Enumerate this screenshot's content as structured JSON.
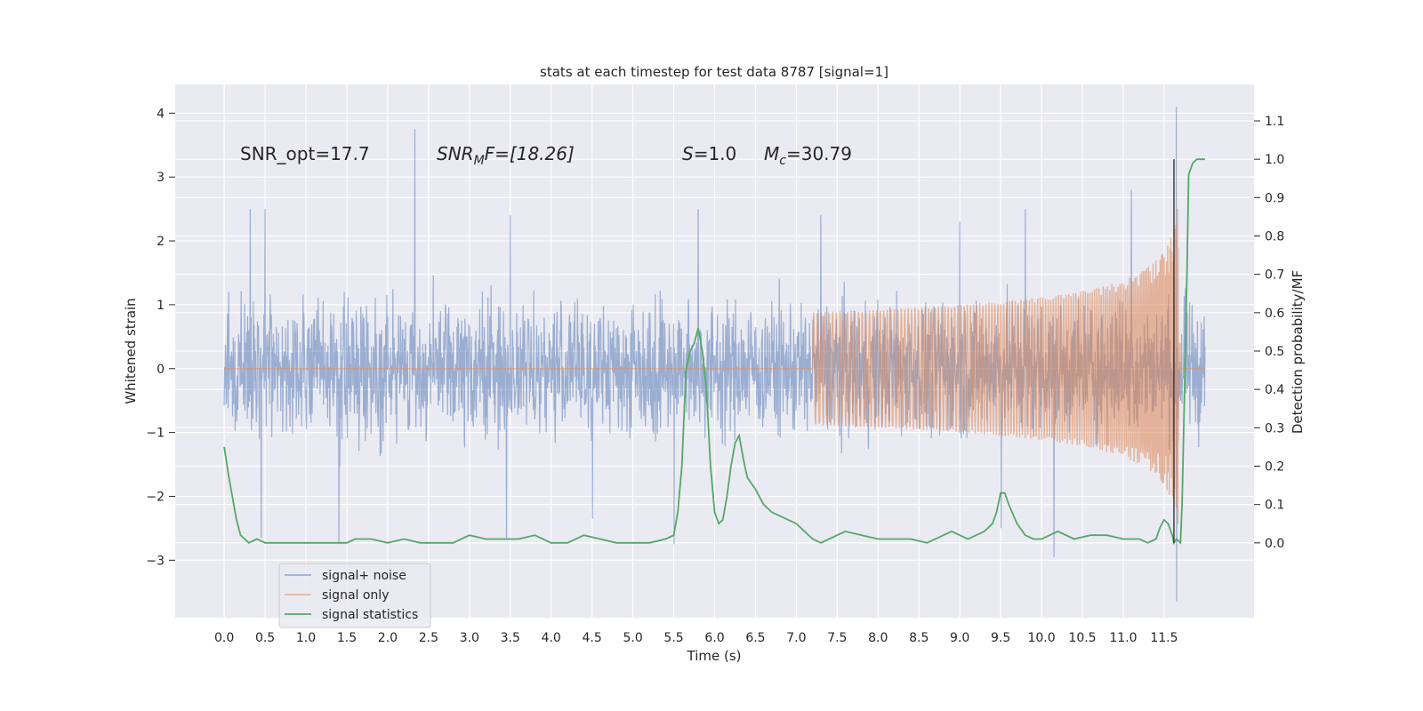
{
  "chart_data": {
    "type": "line",
    "title": "stats at each timestep for test data 8787 [signal=1]",
    "xlabel": "Time (s)",
    "ylabel": "Whitened strain",
    "ylabel_right": "Detection probability/MF",
    "xlim": [
      -0.6,
      12.6
    ],
    "ylim": [
      -3.9,
      4.45
    ],
    "ylim_right": [
      -0.195,
      1.195
    ],
    "grid": true,
    "legend_position": "lower-left",
    "x_ticks": [
      "0.0",
      "0.5",
      "1.0",
      "1.5",
      "2.0",
      "2.5",
      "3.0",
      "3.5",
      "4.0",
      "4.5",
      "5.0",
      "5.5",
      "6.0",
      "6.5",
      "7.0",
      "7.5",
      "8.0",
      "8.5",
      "9.0",
      "9.5",
      "10.0",
      "10.5",
      "11.0",
      "11.5"
    ],
    "y_ticks": [
      "−3",
      "−2",
      "−1",
      "0",
      "1",
      "2",
      "3",
      "4"
    ],
    "y_right_ticks": [
      "0.0",
      "0.1",
      "0.2",
      "0.3",
      "0.4",
      "0.5",
      "0.6",
      "0.7",
      "0.8",
      "0.9",
      "1.0",
      "1.1"
    ],
    "annotations": {
      "snr_opt": "SNR_opt=17.7",
      "snr_mf_main": "SNR",
      "snr_mf_sub": "M",
      "snr_mf_rest": "F=[18.26]",
      "s_main": "S",
      "s_rest": "=1.0",
      "mc_main": "M",
      "mc_sub": "c",
      "mc_rest": "=30.79"
    },
    "series": [
      {
        "name": "signal+ noise",
        "color": "#4c72b0",
        "axis": "left",
        "duration": 12.0,
        "envelope": 1.4,
        "spike_times": [
          0.32,
          0.5,
          2.33,
          3.5,
          5.8,
          7.3,
          9.0,
          9.8,
          11.1,
          11.65
        ],
        "spike_values": [
          2.5,
          2.5,
          3.75,
          2.4,
          2.5,
          2.4,
          2.3,
          2.5,
          2.8,
          4.1
        ],
        "dip_times": [
          0.45,
          1.4,
          3.45,
          4.5,
          5.5,
          9.5,
          10.15,
          11.65
        ],
        "dip_values": [
          -2.65,
          -2.75,
          -2.65,
          -2.35,
          -2.75,
          -2.5,
          -2.95,
          -3.65
        ]
      },
      {
        "name": "signal only",
        "color": "#dd8452",
        "axis": "left",
        "start_time": 7.2,
        "merger_time": 11.7,
        "peak_amplitude": 3.25
      },
      {
        "name": "signal statistics",
        "color": "#55a868",
        "axis": "right",
        "x": [
          0.0,
          0.05,
          0.1,
          0.15,
          0.2,
          0.3,
          0.4,
          0.5,
          0.6,
          0.8,
          1.0,
          1.2,
          1.4,
          1.5,
          1.6,
          1.8,
          2.0,
          2.2,
          2.4,
          2.6,
          2.8,
          3.0,
          3.2,
          3.4,
          3.6,
          3.8,
          4.0,
          4.2,
          4.4,
          4.6,
          4.8,
          5.0,
          5.2,
          5.4,
          5.5,
          5.55,
          5.6,
          5.65,
          5.7,
          5.75,
          5.8,
          5.85,
          5.9,
          5.95,
          6.0,
          6.05,
          6.1,
          6.15,
          6.2,
          6.25,
          6.3,
          6.35,
          6.4,
          6.5,
          6.6,
          6.7,
          6.8,
          6.9,
          7.0,
          7.1,
          7.2,
          7.3,
          7.4,
          7.5,
          7.6,
          7.8,
          8.0,
          8.2,
          8.4,
          8.6,
          8.8,
          8.9,
          9.0,
          9.1,
          9.2,
          9.3,
          9.4,
          9.45,
          9.5,
          9.55,
          9.6,
          9.7,
          9.8,
          9.9,
          10.0,
          10.1,
          10.2,
          10.4,
          10.6,
          10.8,
          11.0,
          11.2,
          11.3,
          11.4,
          11.45,
          11.5,
          11.55,
          11.6,
          11.62,
          11.65,
          11.7,
          11.72,
          11.75,
          11.78,
          11.8,
          11.85,
          11.9,
          11.95,
          12.0
        ],
        "values": [
          0.25,
          0.18,
          0.12,
          0.06,
          0.02,
          0.0,
          0.01,
          0.0,
          0.0,
          0.0,
          0.0,
          0.0,
          0.0,
          0.0,
          0.01,
          0.01,
          0.0,
          0.01,
          0.0,
          0.0,
          0.0,
          0.02,
          0.01,
          0.01,
          0.01,
          0.02,
          0.0,
          0.0,
          0.02,
          0.01,
          0.0,
          0.0,
          0.0,
          0.01,
          0.02,
          0.08,
          0.2,
          0.45,
          0.5,
          0.52,
          0.56,
          0.5,
          0.4,
          0.2,
          0.08,
          0.05,
          0.06,
          0.12,
          0.2,
          0.26,
          0.28,
          0.22,
          0.17,
          0.14,
          0.1,
          0.08,
          0.07,
          0.06,
          0.05,
          0.03,
          0.01,
          0.0,
          0.01,
          0.02,
          0.03,
          0.02,
          0.01,
          0.01,
          0.01,
          0.0,
          0.02,
          0.03,
          0.02,
          0.01,
          0.02,
          0.03,
          0.05,
          0.08,
          0.13,
          0.13,
          0.1,
          0.05,
          0.02,
          0.01,
          0.01,
          0.02,
          0.03,
          0.01,
          0.02,
          0.02,
          0.01,
          0.01,
          0.0,
          0.01,
          0.04,
          0.06,
          0.05,
          0.02,
          0.0,
          0.01,
          0.0,
          0.1,
          0.4,
          0.7,
          0.96,
          0.99,
          1.0,
          1.0,
          1.0
        ]
      }
    ]
  }
}
